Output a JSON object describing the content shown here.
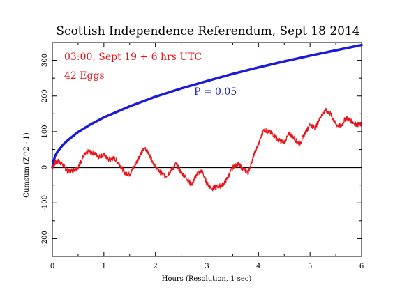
{
  "chart_data": {
    "type": "line",
    "title": "Scottish Independence Referendum, Sept 18 2014",
    "xlabel": "Hours (Resolution, 1 sec)",
    "ylabel": "Cumsum (Z^2 - 1)",
    "xlim": [
      0,
      6
    ],
    "ylim": [
      -250,
      350
    ],
    "xticks": [
      "0",
      "1",
      "2",
      "3",
      "4",
      "5",
      "6"
    ],
    "yticks": [
      "-200",
      "-100",
      "0",
      "100",
      "200",
      "300"
    ],
    "annotations": {
      "time": "03:00, Sept 19 + 6 hrs UTC",
      "eggs": "42 Eggs",
      "p_label": "P = 0.05"
    },
    "colors": {
      "data": "#e8141a",
      "envelope": "#1a1ad8",
      "zero": "#000000"
    },
    "series": [
      {
        "style": "red-jagged",
        "x": [
          0,
          0.05,
          0.12,
          0.2,
          0.3,
          0.4,
          0.5,
          0.6,
          0.7,
          0.8,
          0.9,
          1.0,
          1.1,
          1.2,
          1.3,
          1.4,
          1.5,
          1.6,
          1.7,
          1.8,
          1.9,
          2.0,
          2.1,
          2.2,
          2.3,
          2.4,
          2.5,
          2.6,
          2.7,
          2.8,
          2.9,
          3.0,
          3.1,
          3.2,
          3.3,
          3.4,
          3.5,
          3.6,
          3.7,
          3.8,
          3.9,
          4.0,
          4.1,
          4.2,
          4.3,
          4.4,
          4.5,
          4.6,
          4.7,
          4.8,
          4.9,
          5.0,
          5.1,
          5.2,
          5.3,
          5.4,
          5.5,
          5.6,
          5.7,
          5.8,
          5.9,
          6.0
        ],
        "values": [
          0,
          12,
          18,
          8,
          -12,
          -8,
          0,
          30,
          45,
          40,
          30,
          35,
          20,
          25,
          10,
          -15,
          -20,
          5,
          35,
          55,
          30,
          0,
          -15,
          -25,
          -10,
          10,
          -15,
          -30,
          -50,
          -20,
          -10,
          -45,
          -60,
          -55,
          -50,
          -30,
          0,
          10,
          -5,
          -15,
          30,
          65,
          105,
          100,
          90,
          75,
          70,
          95,
          80,
          65,
          95,
          120,
          110,
          140,
          160,
          150,
          120,
          115,
          140,
          130,
          120,
          120
        ]
      },
      {
        "style": "blue-envelope",
        "x": [
          0,
          0.05,
          0.1,
          0.2,
          0.3,
          0.5,
          0.75,
          1.0,
          1.5,
          2.0,
          2.5,
          3.0,
          3.5,
          4.0,
          4.5,
          5.0,
          5.5,
          6.0
        ],
        "values": [
          0,
          31,
          44,
          62,
          76,
          99,
          121,
          140,
          171,
          198,
          221,
          242,
          262,
          280,
          297,
          313,
          328,
          343
        ]
      }
    ]
  }
}
